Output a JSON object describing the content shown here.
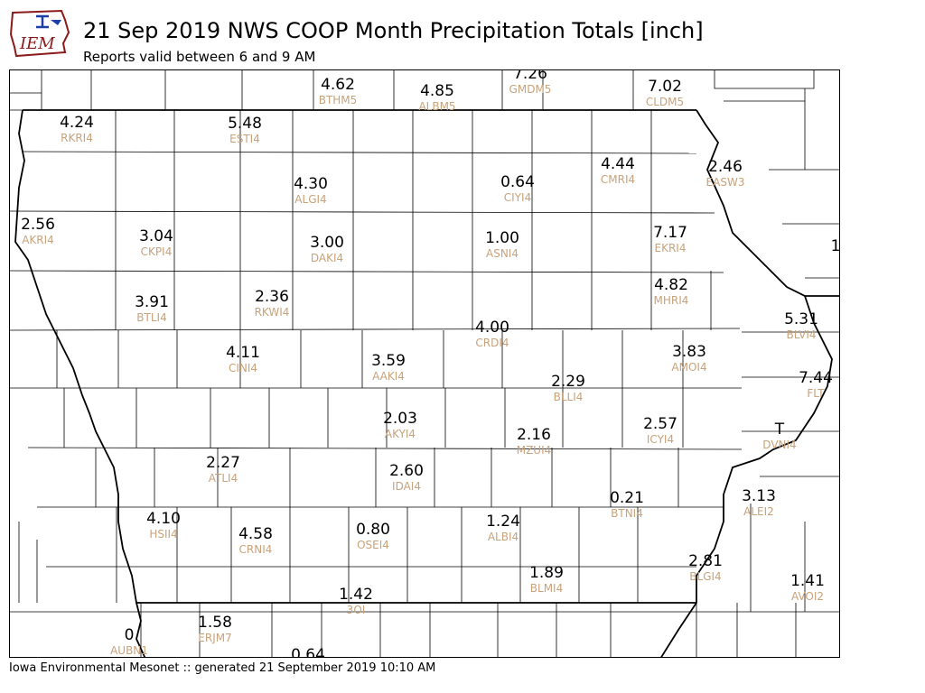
{
  "logo": {
    "text": "IEM",
    "brand_color": "#8b1a1a"
  },
  "header": {
    "title": "21 Sep 2019 NWS COOP Month Precipitation Totals [inch]",
    "subtitle": "Reports valid between 6 and 9 AM"
  },
  "footer": {
    "text": "Iowa Environmental Mesonet :: generated 21 September 2019 10:10 AM"
  },
  "colors": {
    "value_text": "#000000",
    "station_id_text": "#c8a27a",
    "boundary_line": "#000000"
  },
  "stations": [
    {
      "id": "BTHM5",
      "value": "4.62"
    },
    {
      "id": "ALBM5",
      "value": "4.85"
    },
    {
      "id": "GMDM5",
      "value": "7.26"
    },
    {
      "id": "CLDM5",
      "value": "7.02"
    },
    {
      "id": "RKRI4",
      "value": "4.24"
    },
    {
      "id": "ESTI4",
      "value": "5.48"
    },
    {
      "id": "CMRI4",
      "value": "4.44"
    },
    {
      "id": "EASW3",
      "value": "2.46"
    },
    {
      "id": "ALGI4",
      "value": "4.30"
    },
    {
      "id": "CIYI4",
      "value": "0.64"
    },
    {
      "id": "AKRI4",
      "value": "2.56"
    },
    {
      "id": "CKPI4",
      "value": "3.04"
    },
    {
      "id": "DAKI4",
      "value": "3.00"
    },
    {
      "id": "ASNI4",
      "value": "1.00"
    },
    {
      "id": "EKRI4",
      "value": "7.17"
    },
    {
      "id": "",
      "value": "1"
    },
    {
      "id": "BTLI4",
      "value": "3.91"
    },
    {
      "id": "RKWI4",
      "value": "2.36"
    },
    {
      "id": "MHRI4",
      "value": "4.82"
    },
    {
      "id": "BLVI4",
      "value": "5.31"
    },
    {
      "id": "CRDI4",
      "value": "4.00"
    },
    {
      "id": "CINI4",
      "value": "4.11"
    },
    {
      "id": "AMOI4",
      "value": "3.83"
    },
    {
      "id": "AAKI4",
      "value": "3.59"
    },
    {
      "id": "FLT",
      "value": "7.44"
    },
    {
      "id": "BLLI4",
      "value": "2.29"
    },
    {
      "id": "AKYI4",
      "value": "2.03"
    },
    {
      "id": "MZUI4",
      "value": "2.16"
    },
    {
      "id": "ICYI4",
      "value": "2.57"
    },
    {
      "id": "DVNI4",
      "value": "T"
    },
    {
      "id": "ATLI4",
      "value": "2.27"
    },
    {
      "id": "IDAI4",
      "value": "2.60"
    },
    {
      "id": "BTNI4",
      "value": "0.21"
    },
    {
      "id": "ALEI2",
      "value": "3.13"
    },
    {
      "id": "HSII4",
      "value": "4.10"
    },
    {
      "id": "CRNI4",
      "value": "4.58"
    },
    {
      "id": "OSEI4",
      "value": "0.80"
    },
    {
      "id": "ALBI4",
      "value": "1.24"
    },
    {
      "id": "BLMI4",
      "value": "1.89"
    },
    {
      "id": "BLGI4",
      "value": "2.81"
    },
    {
      "id": "AVOI2",
      "value": "1.41"
    },
    {
      "id": "3OI",
      "value": "1.42"
    },
    {
      "id": "AUBN1",
      "value": "0"
    },
    {
      "id": "ERJM7",
      "value": "1.58"
    },
    {
      "id": "",
      "value": "0.64"
    }
  ]
}
